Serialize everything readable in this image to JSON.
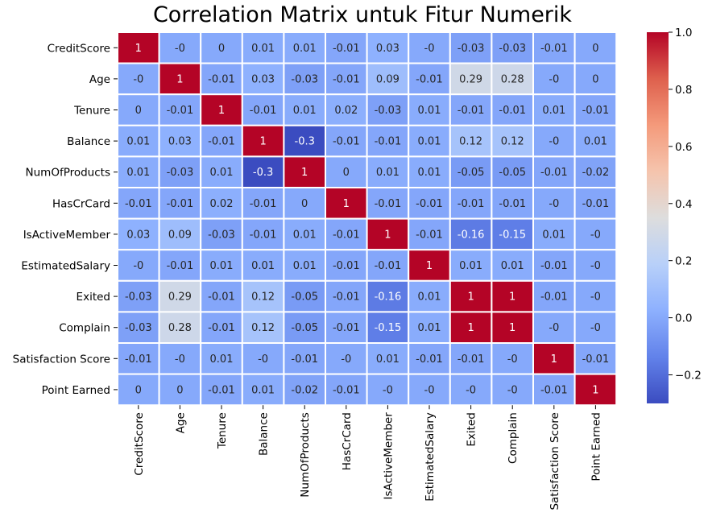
{
  "chart_data": {
    "type": "heatmap",
    "title": "Correlation Matrix untuk Fitur Numerik",
    "xlabel": "",
    "ylabel": "",
    "labels": [
      "CreditScore",
      "Age",
      "Tenure",
      "Balance",
      "NumOfProducts",
      "HasCrCard",
      "IsActiveMember",
      "EstimatedSalary",
      "Exited",
      "Complain",
      "Satisfaction Score",
      "Point Earned"
    ],
    "values": [
      [
        1,
        0,
        0,
        0.01,
        0.01,
        -0.01,
        0.03,
        0,
        -0.03,
        -0.03,
        -0.01,
        0
      ],
      [
        0,
        1,
        -0.01,
        0.03,
        -0.03,
        -0.01,
        0.09,
        -0.01,
        0.29,
        0.28,
        0,
        0
      ],
      [
        0,
        -0.01,
        1,
        -0.01,
        0.01,
        0.02,
        -0.03,
        0.01,
        -0.01,
        -0.01,
        0.01,
        -0.01
      ],
      [
        0.01,
        0.03,
        -0.01,
        1,
        -0.3,
        -0.01,
        -0.01,
        0.01,
        0.12,
        0.12,
        0,
        0.01
      ],
      [
        0.01,
        -0.03,
        0.01,
        -0.3,
        1,
        0,
        0.01,
        0.01,
        -0.05,
        -0.05,
        -0.01,
        -0.02
      ],
      [
        -0.01,
        -0.01,
        0.02,
        -0.01,
        0,
        1,
        -0.01,
        -0.01,
        -0.01,
        -0.01,
        0,
        -0.01
      ],
      [
        0.03,
        0.09,
        -0.03,
        -0.01,
        0.01,
        -0.01,
        1,
        -0.01,
        -0.16,
        -0.15,
        0.01,
        0
      ],
      [
        0,
        -0.01,
        0.01,
        0.01,
        0.01,
        -0.01,
        -0.01,
        1,
        0.01,
        0.01,
        -0.01,
        0
      ],
      [
        -0.03,
        0.29,
        -0.01,
        0.12,
        -0.05,
        -0.01,
        -0.16,
        0.01,
        1,
        1,
        -0.01,
        0
      ],
      [
        -0.03,
        0.28,
        -0.01,
        0.12,
        -0.05,
        -0.01,
        -0.15,
        0.01,
        1,
        1,
        0,
        0
      ],
      [
        -0.01,
        0,
        0.01,
        0,
        -0.01,
        0,
        0.01,
        -0.01,
        -0.01,
        0,
        1,
        -0.01
      ],
      [
        0,
        0,
        -0.01,
        0.01,
        -0.02,
        -0.01,
        0,
        0,
        0,
        0,
        -0.01,
        1
      ]
    ],
    "colormap": "coolwarm",
    "vmin": -0.3,
    "vmax": 1.0,
    "colorbar_ticks": [
      "−0.2",
      "0.0",
      "0.2",
      "0.4",
      "0.6",
      "0.8",
      "1.0"
    ],
    "colorbar_tick_values": [
      -0.2,
      0.0,
      0.2,
      0.4,
      0.6,
      0.8,
      1.0
    ],
    "annotations": true,
    "grid": false,
    "colors": {
      "cell_border": "#ffffff",
      "cool_end": "#3b4cc0",
      "mid": "#dddddd",
      "warm_end": "#b40426"
    }
  }
}
